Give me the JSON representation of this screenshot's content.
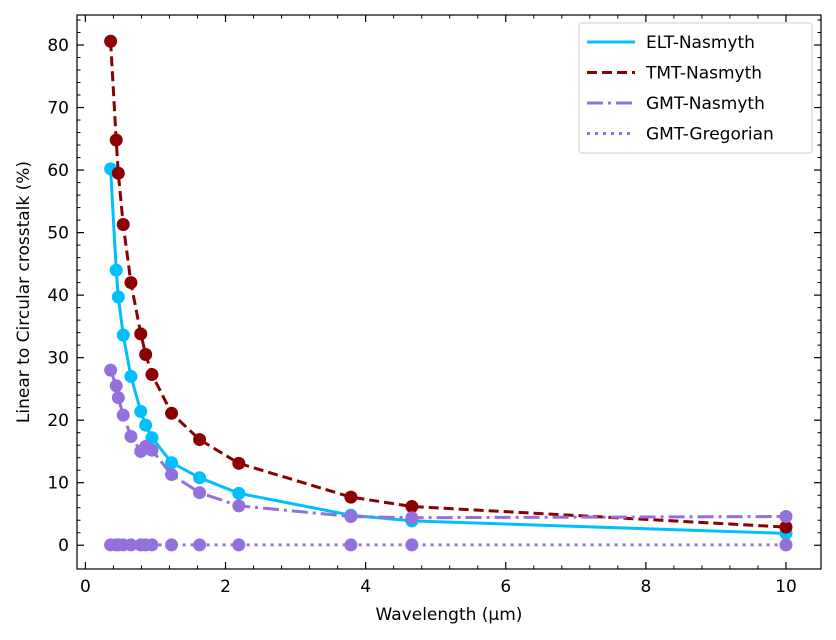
{
  "chart_data": {
    "type": "line",
    "title": "",
    "xlabel": "Wavelength (µm)",
    "ylabel": "Linear to Circular crosstalk (%)",
    "xlim": [
      -0.12,
      10.5
    ],
    "ylim": [
      -3.8,
      84.8
    ],
    "xticks": [
      0,
      2,
      4,
      6,
      8,
      10
    ],
    "yticks": [
      0,
      10,
      20,
      30,
      40,
      50,
      60,
      70,
      80
    ],
    "legend_position": "top-right",
    "series": [
      {
        "name": "ELT-Nasmyth",
        "color": "#00bfff",
        "linestyle": "solid",
        "x": [
          0.36,
          0.44,
          0.47,
          0.54,
          0.65,
          0.79,
          0.86,
          0.95,
          1.23,
          1.63,
          2.19,
          3.79,
          4.66,
          10.0
        ],
        "y": [
          60.2,
          44.0,
          39.7,
          33.6,
          27.0,
          21.4,
          19.2,
          17.2,
          13.2,
          10.8,
          8.3,
          4.8,
          3.9,
          1.9
        ]
      },
      {
        "name": "TMT-Nasmyth",
        "color": "#8b0000",
        "linestyle": "dashed",
        "x": [
          0.36,
          0.44,
          0.47,
          0.54,
          0.65,
          0.79,
          0.86,
          0.95,
          1.23,
          1.63,
          2.19,
          3.79,
          4.66,
          10.0
        ],
        "y": [
          80.6,
          64.8,
          59.5,
          51.3,
          42.0,
          33.8,
          30.5,
          27.3,
          21.1,
          16.9,
          13.1,
          7.7,
          6.2,
          2.9
        ]
      },
      {
        "name": "GMT-Nasmyth",
        "color": "#9370db",
        "linestyle": "dashdot",
        "x": [
          0.36,
          0.44,
          0.47,
          0.54,
          0.65,
          0.79,
          0.86,
          0.95,
          1.23,
          1.63,
          2.19,
          3.79,
          4.66,
          10.0
        ],
        "y": [
          28.0,
          25.5,
          23.6,
          20.8,
          17.4,
          15.0,
          15.8,
          15.2,
          11.3,
          8.4,
          6.3,
          4.6,
          4.4,
          4.6
        ]
      },
      {
        "name": "GMT-Gregorian",
        "color": "#9370db",
        "linestyle": "dotted",
        "x": [
          0.36,
          0.44,
          0.47,
          0.54,
          0.65,
          0.79,
          0.86,
          0.95,
          1.23,
          1.63,
          2.19,
          3.79,
          4.66,
          10.0
        ],
        "y": [
          0.05,
          0.05,
          0.05,
          0.05,
          0.05,
          0.05,
          0.05,
          0.05,
          0.05,
          0.05,
          0.05,
          0.05,
          0.05,
          0.05
        ]
      }
    ]
  }
}
